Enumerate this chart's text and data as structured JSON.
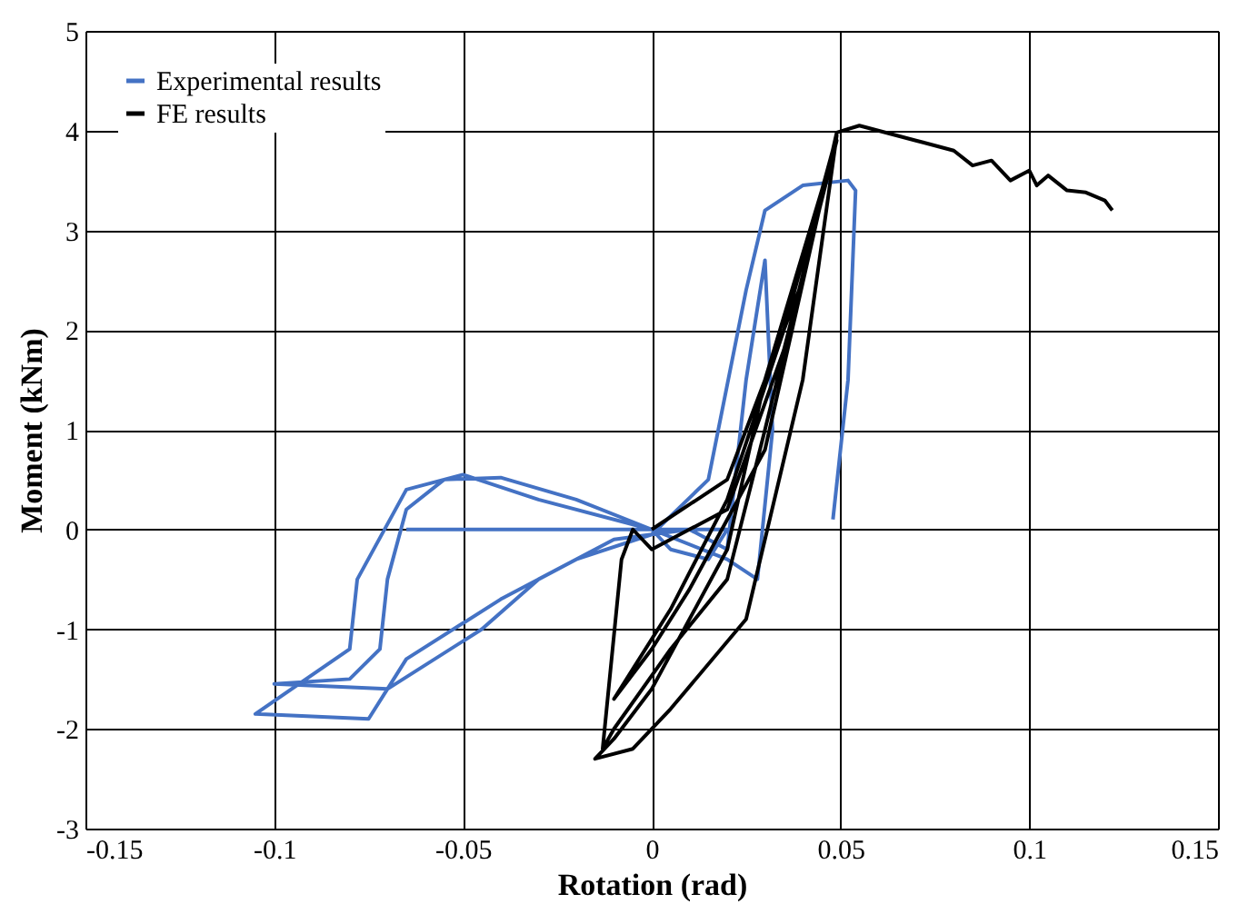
{
  "chart_data": {
    "type": "line",
    "xlabel": "Rotation (rad)",
    "ylabel": "Moment (kNm)",
    "xlim": [
      -0.15,
      0.15
    ],
    "xticks": [
      -0.15,
      -0.1,
      -0.05,
      0,
      0.05,
      0.1,
      0.15
    ],
    "ylim": [
      -3,
      5
    ],
    "yticks": [
      -3,
      -2,
      -1,
      0,
      1,
      2,
      3,
      4,
      5
    ],
    "grid": true,
    "legend": "top left",
    "line_style": "solid",
    "marker": "none",
    "series": [
      {
        "name": "Experimental results",
        "color": "#4472c4",
        "x": [
          -0.065,
          0,
          0.02,
          0.015,
          0.005,
          0,
          -0.02,
          -0.04,
          -0.055,
          -0.065,
          -0.07,
          -0.072,
          -0.08,
          -0.1,
          -0.07,
          -0.045,
          -0.03,
          -0.01,
          0.01,
          0.02,
          0.025,
          0.03,
          0.032,
          0.028,
          0.02,
          0,
          -0.03,
          -0.05,
          -0.065,
          -0.078,
          -0.08,
          -0.105,
          -0.075,
          -0.065,
          -0.04,
          -0.02,
          0,
          0.015,
          0.025,
          0.03,
          0.04,
          0.052,
          0.054,
          0.052,
          0.048
        ],
        "values": [
          0,
          0,
          0,
          -0.3,
          -0.2,
          0,
          0.3,
          0.52,
          0.5,
          0.2,
          -0.5,
          -1.2,
          -1.5,
          -1.55,
          -1.6,
          -1.0,
          -0.5,
          -0.1,
          0,
          -0.2,
          1.5,
          2.7,
          1.0,
          -0.5,
          -0.3,
          0,
          0.3,
          0.55,
          0.4,
          -0.5,
          -1.2,
          -1.85,
          -1.9,
          -1.3,
          -0.7,
          -0.3,
          -0.05,
          0.5,
          2.4,
          3.2,
          3.45,
          3.5,
          3.4,
          1.5,
          0.1
        ]
      },
      {
        "name": "FE results",
        "color": "#000000",
        "x": [
          0,
          0.02,
          0.04,
          0.049,
          0.03,
          0.02,
          0.005,
          -0.01,
          -0.013,
          -0.008,
          -0.005,
          0,
          0.02,
          0.035,
          0.049,
          0.03,
          0.02,
          0.01,
          0,
          -0.01,
          -0.015,
          -0.005,
          0.005,
          0.025,
          0.04,
          0.049,
          0.035,
          0.02,
          0.005,
          -0.005,
          -0.01,
          0,
          0.01,
          0.03,
          0.049,
          0.055,
          0.06,
          0.07,
          0.08,
          0.085,
          0.09,
          0.095,
          0.1,
          0.102,
          0.105,
          0.11,
          0.115,
          0.12,
          0.122
        ],
        "values": [
          0,
          0.5,
          2.5,
          3.95,
          1,
          -0.5,
          -1.2,
          -2.0,
          -2.2,
          -0.3,
          0,
          -0.2,
          0.2,
          1.8,
          3.9,
          1.5,
          -0.2,
          -0.9,
          -1.6,
          -2.1,
          -2.3,
          -2.2,
          -1.8,
          -0.9,
          1.5,
          3.95,
          2.0,
          0.3,
          -0.8,
          -1.4,
          -1.7,
          -1.2,
          -0.6,
          0.8,
          3.98,
          4.05,
          4.0,
          3.9,
          3.8,
          3.65,
          3.7,
          3.5,
          3.6,
          3.45,
          3.55,
          3.4,
          3.38,
          3.3,
          3.2
        ]
      }
    ]
  }
}
